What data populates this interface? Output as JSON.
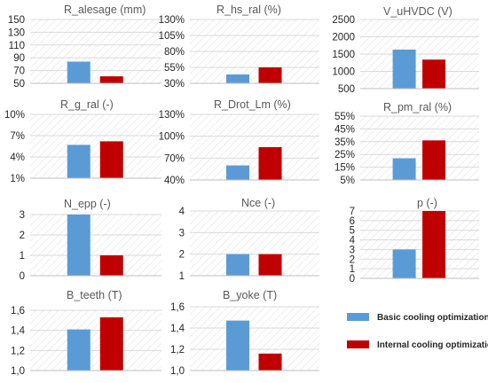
{
  "legend": {
    "items": [
      {
        "label": "Basic cooling optimization",
        "color": "#5b9bd5"
      },
      {
        "label": "Internal cooling optimization",
        "color": "#c00000"
      }
    ]
  },
  "chart_data": [
    {
      "type": "bar",
      "title": "R_alesage (mm)",
      "categories": [
        "Basic cooling optimization",
        "Internal cooling optimization"
      ],
      "values": [
        84,
        61
      ],
      "ylim": [
        50,
        150
      ],
      "yticks": [
        "150",
        "130",
        "110",
        "90",
        "70",
        "50"
      ],
      "ytick_values": [
        150,
        130,
        110,
        90,
        70,
        50
      ],
      "grid": true
    },
    {
      "type": "bar",
      "title": "R_hs_ral (%)",
      "categories": [
        "Basic cooling optimization",
        "Internal cooling optimization"
      ],
      "values": [
        0.44,
        0.55
      ],
      "ylim": [
        0.3,
        1.3
      ],
      "yticks": [
        "130%",
        "105%",
        "80%",
        "55%",
        "30%"
      ],
      "ytick_values": [
        1.3,
        1.05,
        0.8,
        0.55,
        0.3
      ],
      "grid": true
    },
    {
      "type": "bar",
      "title": "V_uHVDC (V)",
      "categories": [
        "Basic cooling optimization",
        "Internal cooling optimization"
      ],
      "values": [
        1630,
        1340
      ],
      "ylim": [
        500,
        2500
      ],
      "yticks": [
        "2500",
        "2000",
        "1500",
        "1000",
        "500"
      ],
      "ytick_values": [
        2500,
        2000,
        1500,
        1000,
        500
      ],
      "grid": true
    },
    {
      "type": "bar",
      "title": "R_g_ral (-)",
      "categories": [
        "Basic cooling optimization",
        "Internal cooling optimization"
      ],
      "values": [
        0.057,
        0.062
      ],
      "ylim": [
        0.01,
        0.1
      ],
      "yticks": [
        "10%",
        "7%",
        "4%",
        "1%"
      ],
      "ytick_values": [
        0.1,
        0.07,
        0.04,
        0.01
      ],
      "grid": true
    },
    {
      "type": "bar",
      "title": "R_Drot_Lm (%)",
      "categories": [
        "Basic cooling optimization",
        "Internal cooling optimization"
      ],
      "values": [
        0.6,
        0.85
      ],
      "ylim": [
        0.4,
        1.3
      ],
      "yticks": [
        "130%",
        "100%",
        "70%",
        "40%"
      ],
      "ytick_values": [
        1.3,
        1.0,
        0.7,
        0.4
      ],
      "grid": true
    },
    {
      "type": "bar",
      "title": "R_pm_ral (%)",
      "categories": [
        "Basic cooling optimization",
        "Internal cooling optimization"
      ],
      "values": [
        0.22,
        0.36
      ],
      "ylim": [
        0.05,
        0.55
      ],
      "yticks": [
        "55%",
        "45%",
        "35%",
        "25%",
        "15%",
        "5%"
      ],
      "ytick_values": [
        0.55,
        0.45,
        0.35,
        0.25,
        0.15,
        0.05
      ],
      "grid": true
    },
    {
      "type": "bar",
      "title": "N_epp (-)",
      "categories": [
        "Basic cooling optimization",
        "Internal cooling optimization"
      ],
      "values": [
        3,
        1
      ],
      "ylim": [
        0,
        3
      ],
      "yticks": [
        "3",
        "2",
        "1",
        "0"
      ],
      "ytick_values": [
        3,
        2,
        1,
        0
      ],
      "grid": true
    },
    {
      "type": "bar",
      "title": "Nce (-)",
      "categories": [
        "Basic cooling optimization",
        "Internal cooling optimization"
      ],
      "values": [
        2,
        2
      ],
      "ylim": [
        1,
        4
      ],
      "yticks": [
        "4",
        "3",
        "2",
        "1"
      ],
      "ytick_values": [
        4,
        3,
        2,
        1
      ],
      "grid": true
    },
    {
      "type": "bar",
      "title": "p (-)",
      "categories": [
        "Basic cooling optimization",
        "Internal cooling optimization"
      ],
      "values": [
        3,
        7
      ],
      "ylim": [
        0,
        7
      ],
      "yticks": [
        "7",
        "6",
        "5",
        "4",
        "3",
        "2",
        "1",
        "0"
      ],
      "ytick_values": [
        7,
        6,
        5,
        4,
        3,
        2,
        1,
        0
      ],
      "grid": true
    },
    {
      "type": "bar",
      "title": "B_teeth (T)",
      "categories": [
        "Basic cooling optimization",
        "Internal cooling optimization"
      ],
      "values": [
        1.41,
        1.53
      ],
      "ylim": [
        1.0,
        1.6
      ],
      "yticks": [
        "1,6",
        "1,4",
        "1,2",
        "1,0"
      ],
      "ytick_values": [
        1.6,
        1.4,
        1.2,
        1.0
      ],
      "grid": true
    },
    {
      "type": "bar",
      "title": "B_yoke (T)",
      "categories": [
        "Basic cooling optimization",
        "Internal cooling optimization"
      ],
      "values": [
        1.47,
        1.16
      ],
      "ylim": [
        1.0,
        1.6
      ],
      "yticks": [
        "1,6",
        "1,4",
        "1,2",
        "1,0"
      ],
      "ytick_values": [
        1.6,
        1.4,
        1.2,
        1.0
      ],
      "grid": true
    }
  ]
}
